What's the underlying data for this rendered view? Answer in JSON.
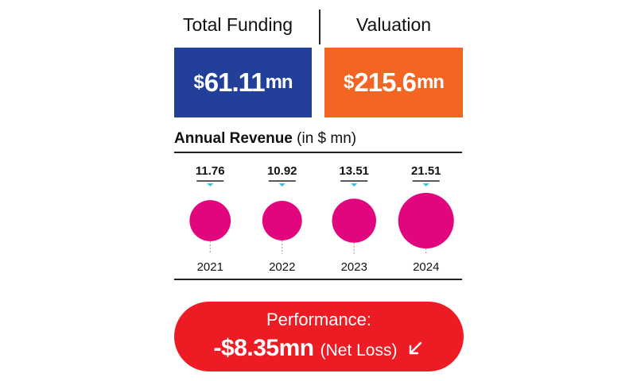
{
  "header": {
    "funding_label": "Total Funding",
    "valuation_label": "Valuation"
  },
  "funding": {
    "currency": "$",
    "amount": "61.11",
    "unit": "mn",
    "color": "#223f9a"
  },
  "valuation": {
    "currency": "$",
    "amount": "215.6",
    "unit": "mn",
    "color": "#f26522"
  },
  "revenue": {
    "title": "Annual Revenue",
    "unit_note": "(in $ mn)"
  },
  "chart_data": {
    "type": "bubble",
    "title": "Annual Revenue (in $ mn)",
    "categories": [
      "2021",
      "2022",
      "2023",
      "2024"
    ],
    "values": [
      11.76,
      10.92,
      13.51,
      21.51
    ],
    "labels": [
      "11.76",
      "10.92",
      "13.51",
      "21.51"
    ],
    "bubble_color": "#e2067e",
    "marker_color": "#2ec4e6"
  },
  "performance": {
    "label": "Performance:",
    "value": "-$8.35mn",
    "note": "(Net Loss)",
    "icon": "arrow-down-left-icon",
    "color": "#ed1c24"
  }
}
